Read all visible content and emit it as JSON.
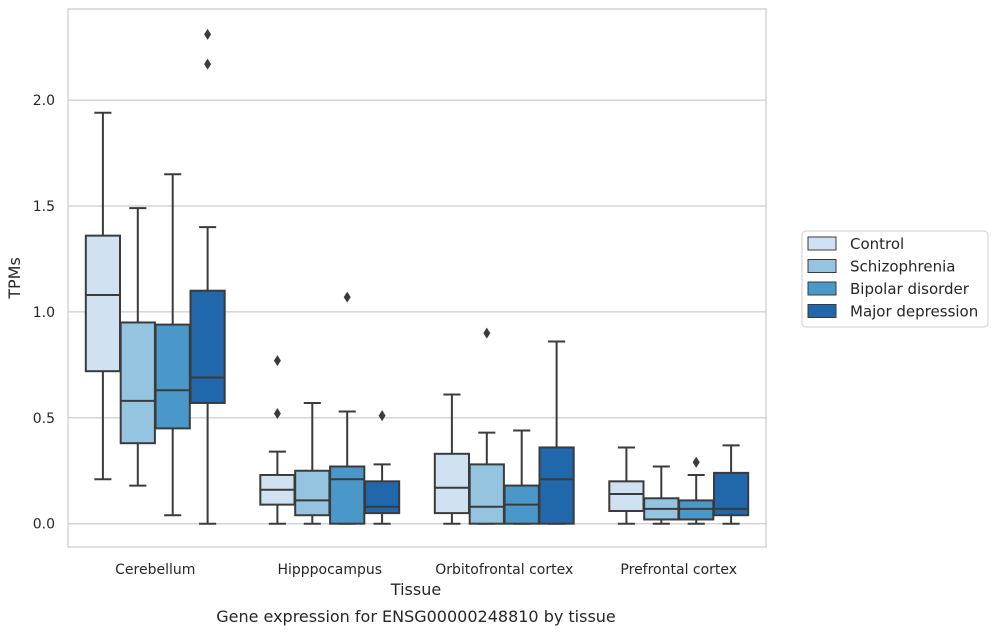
{
  "chart_data": {
    "type": "box",
    "title": "Gene expression for ENSG00000248810 by tissue",
    "xlabel": "Tissue",
    "ylabel": "TPMs",
    "ylim": [
      -0.11,
      2.43
    ],
    "yticks": [
      0.0,
      0.5,
      1.0,
      1.5,
      2.0
    ],
    "ytick_labels": [
      "0.0",
      "0.5",
      "1.0",
      "1.5",
      "2.0"
    ],
    "grid": "horizontal",
    "legend_position": "right",
    "categories": [
      "Cerebellum",
      "Hipppocampus",
      "Orbitofrontal cortex",
      "Prefrontal cortex"
    ],
    "series": [
      {
        "name": "Control",
        "color": "#d0e1f2",
        "boxes": [
          {
            "whisker_low": 0.21,
            "q1": 0.72,
            "median": 1.08,
            "q3": 1.36,
            "whisker_high": 1.94,
            "outliers": []
          },
          {
            "whisker_low": 0.0,
            "q1": 0.09,
            "median": 0.16,
            "q3": 0.23,
            "whisker_high": 0.34,
            "outliers": [
              0.52,
              0.77
            ]
          },
          {
            "whisker_low": 0.0,
            "q1": 0.05,
            "median": 0.17,
            "q3": 0.33,
            "whisker_high": 0.61,
            "outliers": []
          },
          {
            "whisker_low": 0.0,
            "q1": 0.06,
            "median": 0.14,
            "q3": 0.2,
            "whisker_high": 0.36,
            "outliers": []
          }
        ]
      },
      {
        "name": "Schizophrenia",
        "color": "#94c4df",
        "boxes": [
          {
            "whisker_low": 0.18,
            "q1": 0.38,
            "median": 0.58,
            "q3": 0.95,
            "whisker_high": 1.49,
            "outliers": []
          },
          {
            "whisker_low": 0.0,
            "q1": 0.04,
            "median": 0.11,
            "q3": 0.25,
            "whisker_high": 0.57,
            "outliers": []
          },
          {
            "whisker_low": 0.0,
            "q1": 0.0,
            "median": 0.08,
            "q3": 0.28,
            "whisker_high": 0.43,
            "outliers": [
              0.9
            ]
          },
          {
            "whisker_low": 0.0,
            "q1": 0.02,
            "median": 0.07,
            "q3": 0.12,
            "whisker_high": 0.27,
            "outliers": []
          }
        ]
      },
      {
        "name": "Bipolar disorder",
        "color": "#4a98c9",
        "boxes": [
          {
            "whisker_low": 0.04,
            "q1": 0.45,
            "median": 0.63,
            "q3": 0.94,
            "whisker_high": 1.65,
            "outliers": []
          },
          {
            "whisker_low": 0.0,
            "q1": 0.0,
            "median": 0.21,
            "q3": 0.27,
            "whisker_high": 0.53,
            "outliers": [
              1.07
            ]
          },
          {
            "whisker_low": 0.0,
            "q1": 0.0,
            "median": 0.09,
            "q3": 0.18,
            "whisker_high": 0.44,
            "outliers": []
          },
          {
            "whisker_low": 0.0,
            "q1": 0.02,
            "median": 0.07,
            "q3": 0.11,
            "whisker_high": 0.23,
            "outliers": [
              0.29
            ]
          }
        ]
      },
      {
        "name": "Major depression",
        "color": "#2167ab",
        "boxes": [
          {
            "whisker_low": 0.0,
            "q1": 0.57,
            "median": 0.69,
            "q3": 1.1,
            "whisker_high": 1.4,
            "outliers": [
              2.17,
              2.31
            ]
          },
          {
            "whisker_low": 0.0,
            "q1": 0.05,
            "median": 0.08,
            "q3": 0.2,
            "whisker_high": 0.28,
            "outliers": [
              0.51
            ]
          },
          {
            "whisker_low": 0.0,
            "q1": 0.0,
            "median": 0.21,
            "q3": 0.36,
            "whisker_high": 0.86,
            "outliers": []
          },
          {
            "whisker_low": 0.0,
            "q1": 0.04,
            "median": 0.07,
            "q3": 0.24,
            "whisker_high": 0.37,
            "outliers": []
          }
        ]
      }
    ]
  }
}
